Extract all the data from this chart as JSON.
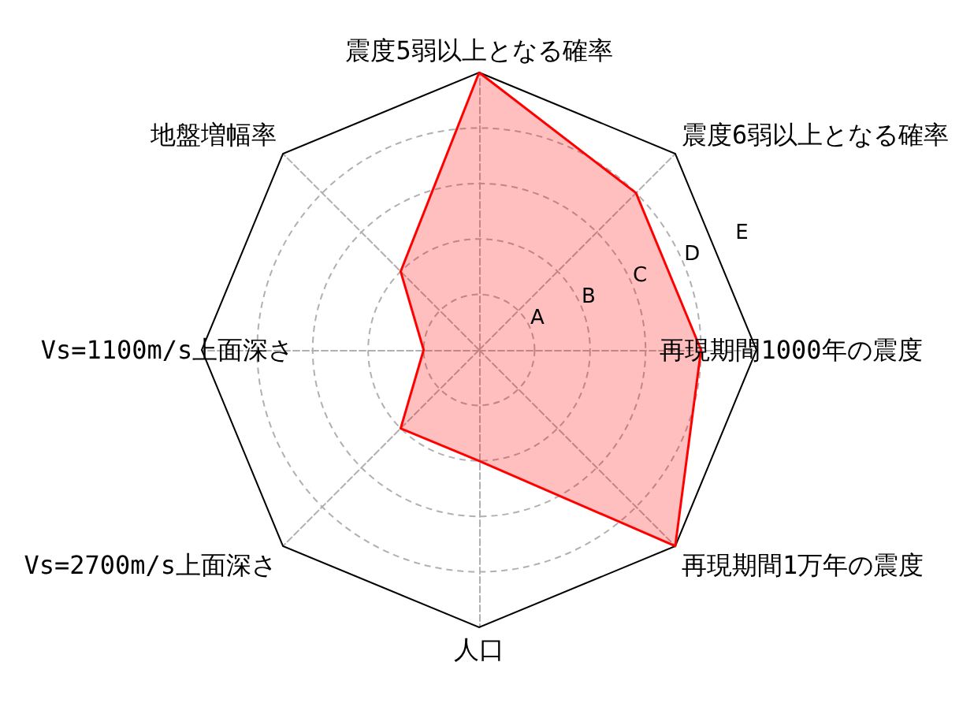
{
  "chart_data": {
    "type": "radar",
    "categories": [
      "震度5弱以上となる確率",
      "震度6弱以上となる確率",
      "再現期間1000年の震度",
      "再現期間1万年の震度",
      "人口",
      "Vs=2700m/s上面深さ",
      "Vs=1100m/s上面深さ",
      "地盤増幅率"
    ],
    "series": [
      {
        "color": "#ff0000",
        "values": [
          5,
          4,
          4,
          5,
          2,
          2,
          1,
          2
        ]
      }
    ],
    "ylim": [
      0,
      5
    ],
    "yticks": [
      {
        "value": 1,
        "label": "A"
      },
      {
        "value": 2,
        "label": "B"
      },
      {
        "value": 3,
        "label": "C"
      },
      {
        "value": 4,
        "label": "D"
      },
      {
        "value": 5,
        "label": "E"
      }
    ],
    "grid": true
  }
}
